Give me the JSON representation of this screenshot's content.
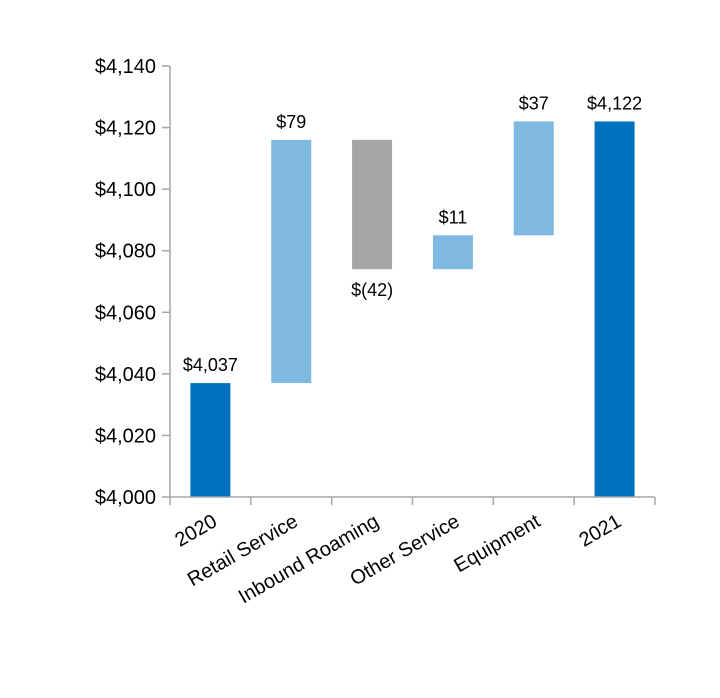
{
  "chart_data": {
    "type": "bar",
    "subtype": "waterfall",
    "categories": [
      "2020",
      "Retail Service",
      "Inbound Roaming",
      "Other Service",
      "Equipment",
      "2021"
    ],
    "bars": [
      {
        "category": "2020",
        "kind": "total",
        "start": 4000,
        "end": 4037,
        "label": "$4,037",
        "label_position": "above"
      },
      {
        "category": "Retail Service",
        "kind": "increase",
        "start": 4037,
        "end": 4116,
        "label": "$79",
        "label_position": "above"
      },
      {
        "category": "Inbound Roaming",
        "kind": "decrease",
        "start": 4116,
        "end": 4074,
        "label": "$(42)",
        "label_position": "below"
      },
      {
        "category": "Other Service",
        "kind": "increase",
        "start": 4074,
        "end": 4085,
        "label": "$11",
        "label_position": "above"
      },
      {
        "category": "Equipment",
        "kind": "increase",
        "start": 4085,
        "end": 4122,
        "label": "$37",
        "label_position": "above"
      },
      {
        "category": "2021",
        "kind": "total",
        "start": 4000,
        "end": 4122,
        "label": "$4,122",
        "label_position": "above"
      }
    ],
    "yticks": [
      4000,
      4020,
      4040,
      4060,
      4080,
      4100,
      4120,
      4140
    ],
    "ytick_labels": [
      "$4,000",
      "$4,020",
      "$4,040",
      "$4,060",
      "$4,080",
      "$4,100",
      "$4,120",
      "$4,140"
    ],
    "ylim": [
      4000,
      4140
    ],
    "title": "",
    "xlabel": "",
    "ylabel": "",
    "grid": false,
    "legend": "none",
    "colors": {
      "total": "#0070C0",
      "increase": "#7FB8E1",
      "decrease": "#A6A6A6",
      "axis": "#A6A6A6"
    }
  }
}
